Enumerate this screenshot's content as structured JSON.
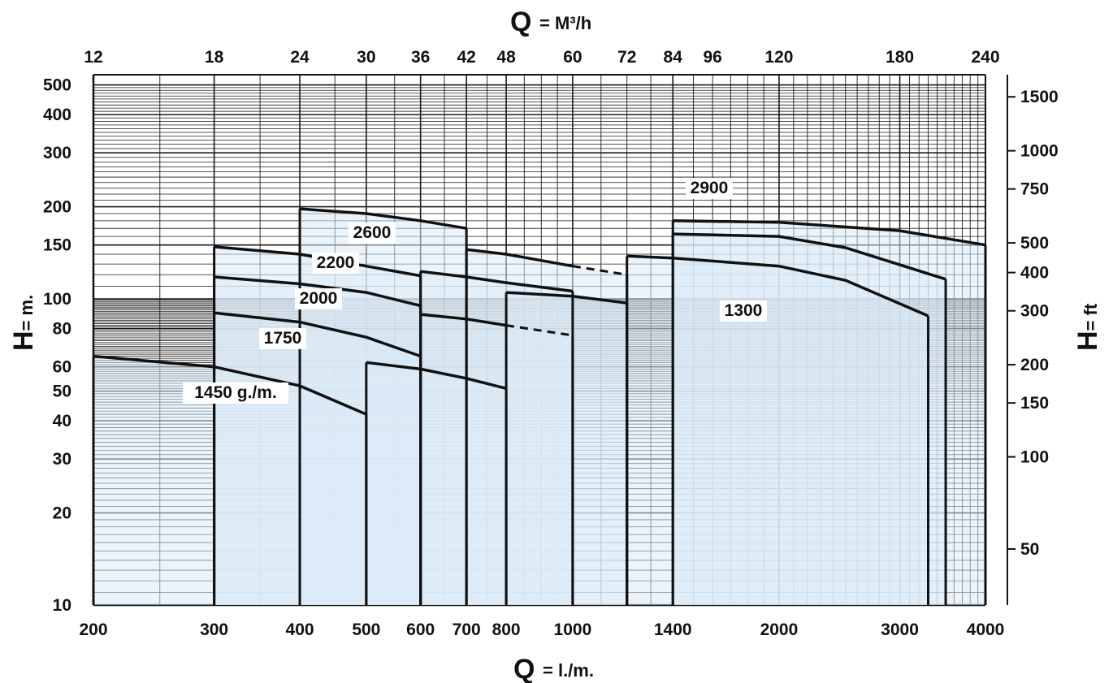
{
  "chart_data": {
    "type": "area",
    "x_scale": "log",
    "y_scale": "log",
    "grid": true,
    "fill_color": "#dcebf7",
    "line_color": "#111111",
    "grid_color": "#1a1a1a",
    "x_title_bottom": {
      "symbol": "Q",
      "unit": "= l./m."
    },
    "x_title_top": {
      "symbol": "Q",
      "unit": "= M³/h"
    },
    "y_title_left": {
      "symbol": "H",
      "unit": "= m."
    },
    "y_title_right": {
      "symbol": "H",
      "unit": "= ft"
    },
    "xlim": [
      200,
      4000
    ],
    "ylim": [
      10,
      540
    ],
    "x_ticks_bottom": [
      {
        "v": 200,
        "label": "200"
      },
      {
        "v": 300,
        "label": "300"
      },
      {
        "v": 400,
        "label": "400"
      },
      {
        "v": 500,
        "label": "500"
      },
      {
        "v": 600,
        "label": "600"
      },
      {
        "v": 700,
        "label": "700"
      },
      {
        "v": 800,
        "label": "800"
      },
      {
        "v": 1000,
        "label": "1000"
      },
      {
        "v": 1400,
        "label": "1400"
      },
      {
        "v": 2000,
        "label": "2000"
      },
      {
        "v": 3000,
        "label": "3000"
      },
      {
        "v": 4000,
        "label": "4000"
      }
    ],
    "x_ticks_top": [
      {
        "v": 12,
        "label": "12"
      },
      {
        "v": 18,
        "label": "18"
      },
      {
        "v": 24,
        "label": "24"
      },
      {
        "v": 30,
        "label": "30"
      },
      {
        "v": 36,
        "label": "36"
      },
      {
        "v": 42,
        "label": "42"
      },
      {
        "v": 48,
        "label": "48"
      },
      {
        "v": 60,
        "label": "60"
      },
      {
        "v": 72,
        "label": "72"
      },
      {
        "v": 84,
        "label": "84"
      },
      {
        "v": 96,
        "label": "96"
      },
      {
        "v": 120,
        "label": "120"
      },
      {
        "v": 180,
        "label": "180"
      },
      {
        "v": 240,
        "label": "240"
      }
    ],
    "y_ticks_left": [
      {
        "v": 10,
        "label": "10"
      },
      {
        "v": 20,
        "label": "20"
      },
      {
        "v": 30,
        "label": "30"
      },
      {
        "v": 40,
        "label": "40"
      },
      {
        "v": 50,
        "label": "50"
      },
      {
        "v": 60,
        "label": "60"
      },
      {
        "v": 80,
        "label": "80"
      },
      {
        "v": 100,
        "label": "100"
      },
      {
        "v": 150,
        "label": "150"
      },
      {
        "v": 200,
        "label": "200"
      },
      {
        "v": 300,
        "label": "300"
      },
      {
        "v": 400,
        "label": "400"
      },
      {
        "v": 500,
        "label": "500"
      }
    ],
    "y_ticks_right": [
      {
        "v": 50,
        "label": "50"
      },
      {
        "v": 100,
        "label": "100"
      },
      {
        "v": 150,
        "label": "150"
      },
      {
        "v": 200,
        "label": "200"
      },
      {
        "v": 300,
        "label": "300"
      },
      {
        "v": 400,
        "label": "400"
      },
      {
        "v": 500,
        "label": "500"
      },
      {
        "v": 750,
        "label": "750"
      },
      {
        "v": 1000,
        "label": "1000"
      },
      {
        "v": 1500,
        "label": "1500"
      }
    ],
    "series": [
      {
        "name": "1450 g./m.",
        "x_range": [
          200,
          500
        ],
        "head_range": [
          65,
          42
        ],
        "points": [
          [
            200,
            65
          ],
          [
            300,
            60
          ],
          [
            400,
            52
          ],
          [
            500,
            42
          ]
        ],
        "bands": [
          {
            "x_range": [
              200,
              500
            ],
            "points": [
              [
                200,
                65
              ],
              [
                300,
                60
              ],
              [
                400,
                52
              ],
              [
                500,
                42
              ]
            ]
          },
          {
            "x_range": [
              500,
              800
            ],
            "points": [
              [
                500,
                62
              ],
              [
                600,
                59
              ],
              [
                700,
                55
              ],
              [
                800,
                51
              ]
            ]
          }
        ]
      },
      {
        "name": "1750",
        "x_range": [
          300,
          600
        ],
        "bands": [
          {
            "x_range": [
              300,
              600
            ],
            "points": [
              [
                300,
                90
              ],
              [
                400,
                84
              ],
              [
                500,
                75
              ],
              [
                600,
                65
              ]
            ]
          },
          {
            "x_range": [
              600,
              1000
            ],
            "points": [
              [
                600,
                89
              ],
              [
                700,
                86
              ],
              [
                800,
                82
              ],
              [
                1000,
                76
              ]
            ],
            "dashed_from": 800
          }
        ]
      },
      {
        "name": "2000",
        "bands": [
          {
            "x_range": [
              300,
              600
            ],
            "points": [
              [
                300,
                118
              ],
              [
                400,
                112
              ],
              [
                500,
                105
              ],
              [
                600,
                95
              ]
            ]
          },
          {
            "x_range": [
              800,
              1200
            ],
            "points": [
              [
                800,
                105
              ],
              [
                1000,
                102
              ],
              [
                1200,
                97
              ]
            ]
          }
        ]
      },
      {
        "name": "2200",
        "bands": [
          {
            "x_range": [
              300,
              600
            ],
            "points": [
              [
                300,
                148
              ],
              [
                400,
                140
              ],
              [
                500,
                128
              ],
              [
                600,
                119
              ]
            ]
          },
          {
            "x_range": [
              600,
              1000
            ],
            "points": [
              [
                600,
                123
              ],
              [
                700,
                118
              ],
              [
                800,
                113
              ],
              [
                1000,
                106
              ]
            ]
          }
        ]
      },
      {
        "name": "2600",
        "bands": [
          {
            "x_range": [
              400,
              700
            ],
            "points": [
              [
                400,
                197
              ],
              [
                500,
                190
              ],
              [
                600,
                180
              ],
              [
                700,
                170
              ]
            ]
          },
          {
            "x_range": [
              700,
              1200
            ],
            "points": [
              [
                700,
                145
              ],
              [
                800,
                140
              ],
              [
                1000,
                128
              ],
              [
                1200,
                120
              ]
            ],
            "dashed_from": 1000
          }
        ]
      },
      {
        "name": "1300",
        "bands": [
          {
            "x_range": [
              1200,
              3300
            ],
            "points": [
              [
                1200,
                138
              ],
              [
                1400,
                136
              ],
              [
                2000,
                128
              ],
              [
                2500,
                115
              ],
              [
                3300,
                88
              ]
            ]
          }
        ]
      },
      {
        "name": "2900",
        "bands": [
          {
            "x_range": [
              1400,
              3500
            ],
            "points": [
              [
                1400,
                163
              ],
              [
                2000,
                160
              ],
              [
                2500,
                147
              ],
              [
                3500,
                116
              ]
            ]
          },
          {
            "x_range": [
              1400,
              4000
            ],
            "points": [
              [
                1400,
                180
              ],
              [
                2000,
                178
              ],
              [
                3000,
                167
              ],
              [
                4000,
                150
              ]
            ]
          }
        ]
      }
    ]
  }
}
